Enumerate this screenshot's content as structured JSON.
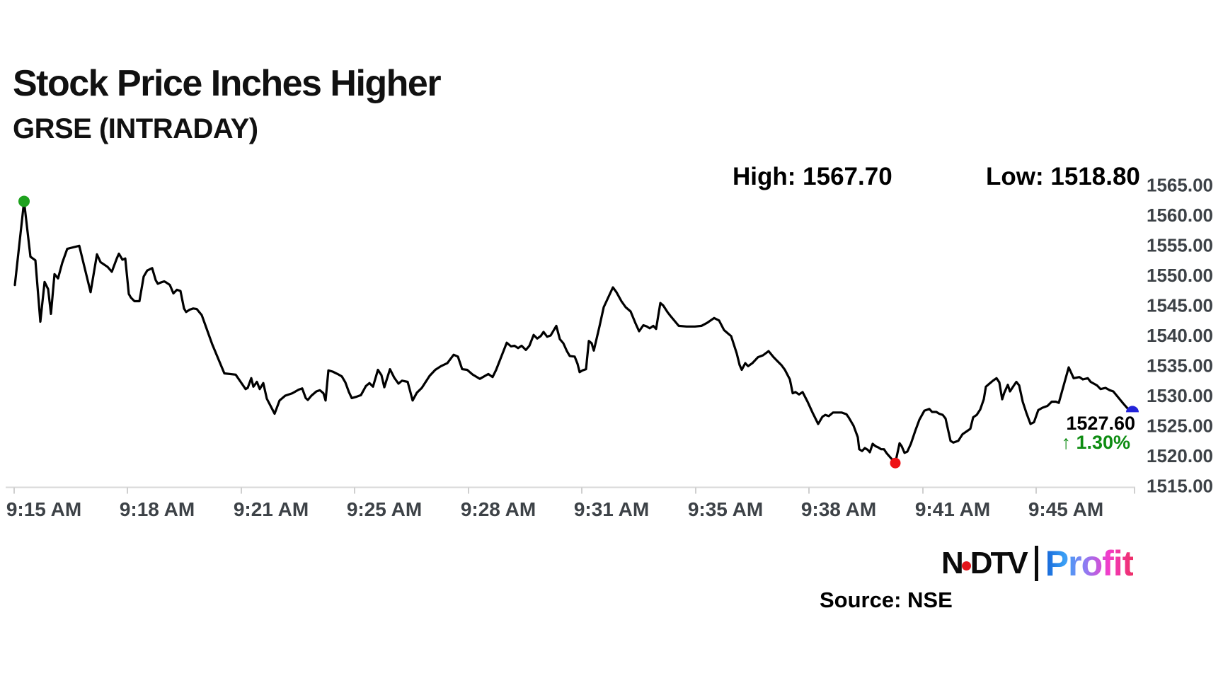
{
  "header": {
    "title": "Stock Price Inches Higher",
    "subtitle": "GRSE (INTRADAY)",
    "high_label": "High: 1567.70",
    "low_label": "Low: 1518.80"
  },
  "annotation": {
    "last_price": "1527.60",
    "change": "↑ 1.30%"
  },
  "footer": {
    "source": "Source: NSE",
    "logo_ndtv_n": "N",
    "logo_ndtv_dtv": "DTV",
    "logo_profit": "Profit"
  },
  "colors": {
    "line": "#000000",
    "axis_label": "#3d4247",
    "axis_line": "#d9d9d9",
    "tick": "#cfcfcf",
    "marker_start_green": "#1ea21e",
    "marker_low_red": "#ee1114",
    "marker_end_blue": "#2323d9",
    "change_green": "#0e8c12",
    "logo_red_dot": "#e3151b"
  },
  "chart_data": {
    "type": "line",
    "title": "Stock Price Inches Higher",
    "subtitle": "GRSE (INTRADAY)",
    "series_name": "GRSE intraday price",
    "session_high": 1567.7,
    "session_low": 1518.8,
    "last_price": 1527.6,
    "change_pct_text": "1.30%",
    "change_direction": "up",
    "legend": false,
    "grid": false,
    "y_axis": {
      "min": 1515,
      "max": 1565,
      "step": 5,
      "side": "right",
      "label_format": "2dp"
    },
    "x_axis": {
      "labels": [
        "9:15 AM",
        "9:18 AM",
        "9:21 AM",
        "9:25 AM",
        "9:28 AM",
        "9:31 AM",
        "9:35 AM",
        "9:38 AM",
        "9:41 AM",
        "9:45 AM"
      ]
    },
    "x_encoding": "first value of each pair is horizontal position (px on 1728-wide canvas, categorical intraday time axis); second value is price (INR)",
    "markers": {
      "start": "green dot at opening spike high",
      "low": "red dot at session low",
      "end": "blue dot at last traded price"
    },
    "points": [
      [
        21,
        1548.4
      ],
      [
        34,
        1562.3
      ],
      [
        43,
        1553.1
      ],
      [
        50,
        1552.5
      ],
      [
        57,
        1542.3
      ],
      [
        63,
        1548.9
      ],
      [
        68,
        1547.7
      ],
      [
        72,
        1543.6
      ],
      [
        77,
        1550.2
      ],
      [
        82,
        1549.5
      ],
      [
        88,
        1552.1
      ],
      [
        95,
        1554.4
      ],
      [
        105,
        1554.7
      ],
      [
        112,
        1554.9
      ],
      [
        128,
        1547.2
      ],
      [
        137,
        1553.5
      ],
      [
        142,
        1552.2
      ],
      [
        147,
        1551.8
      ],
      [
        152,
        1551.4
      ],
      [
        158,
        1550.6
      ],
      [
        165,
        1552.8
      ],
      [
        168,
        1553.6
      ],
      [
        173,
        1552.6
      ],
      [
        177,
        1552.8
      ],
      [
        182,
        1546.9
      ],
      [
        185,
        1546.3
      ],
      [
        190,
        1545.7
      ],
      [
        197,
        1545.7
      ],
      [
        203,
        1549.8
      ],
      [
        208,
        1550.8
      ],
      [
        215,
        1551.2
      ],
      [
        220,
        1549.2
      ],
      [
        223,
        1548.6
      ],
      [
        227,
        1548.8
      ],
      [
        232,
        1549.0
      ],
      [
        235,
        1548.8
      ],
      [
        240,
        1548.4
      ],
      [
        245,
        1547.0
      ],
      [
        250,
        1547.6
      ],
      [
        255,
        1547.4
      ],
      [
        260,
        1544.5
      ],
      [
        263,
        1543.9
      ],
      [
        268,
        1544.3
      ],
      [
        273,
        1544.5
      ],
      [
        278,
        1544.4
      ],
      [
        285,
        1543.4
      ],
      [
        300,
        1538.5
      ],
      [
        317,
        1533.7
      ],
      [
        333,
        1533.5
      ],
      [
        340,
        1532.3
      ],
      [
        347,
        1531.1
      ],
      [
        350,
        1531.3
      ],
      [
        355,
        1532.9
      ],
      [
        358,
        1531.5
      ],
      [
        363,
        1532.3
      ],
      [
        367,
        1531.1
      ],
      [
        372,
        1532.1
      ],
      [
        377,
        1529.5
      ],
      [
        388,
        1527.0
      ],
      [
        395,
        1529.2
      ],
      [
        403,
        1530.0
      ],
      [
        413,
        1530.4
      ],
      [
        422,
        1531.0
      ],
      [
        427,
        1531.2
      ],
      [
        432,
        1529.6
      ],
      [
        435,
        1529.3
      ],
      [
        440,
        1530.0
      ],
      [
        447,
        1530.7
      ],
      [
        452,
        1530.9
      ],
      [
        457,
        1530.4
      ],
      [
        460,
        1529.2
      ],
      [
        464,
        1534.2
      ],
      [
        470,
        1534.0
      ],
      [
        477,
        1533.6
      ],
      [
        483,
        1533.2
      ],
      [
        488,
        1532.2
      ],
      [
        493,
        1530.6
      ],
      [
        497,
        1529.6
      ],
      [
        503,
        1529.8
      ],
      [
        510,
        1530.1
      ],
      [
        517,
        1531.6
      ],
      [
        522,
        1532.1
      ],
      [
        527,
        1531.5
      ],
      [
        534,
        1534.3
      ],
      [
        539,
        1533.4
      ],
      [
        543,
        1531.4
      ],
      [
        551,
        1534.4
      ],
      [
        557,
        1533.0
      ],
      [
        563,
        1532.0
      ],
      [
        568,
        1532.5
      ],
      [
        576,
        1532.3
      ],
      [
        583,
        1529.2
      ],
      [
        589,
        1530.5
      ],
      [
        596,
        1531.3
      ],
      [
        607,
        1533.3
      ],
      [
        615,
        1534.3
      ],
      [
        623,
        1534.9
      ],
      [
        632,
        1535.4
      ],
      [
        641,
        1536.8
      ],
      [
        647,
        1536.5
      ],
      [
        653,
        1534.4
      ],
      [
        660,
        1534.3
      ],
      [
        668,
        1533.5
      ],
      [
        678,
        1532.8
      ],
      [
        690,
        1533.6
      ],
      [
        696,
        1533.1
      ],
      [
        701,
        1534.3
      ],
      [
        716,
        1538.8
      ],
      [
        722,
        1538.2
      ],
      [
        727,
        1538.3
      ],
      [
        732,
        1537.9
      ],
      [
        737,
        1538.3
      ],
      [
        743,
        1537.6
      ],
      [
        748,
        1538.3
      ],
      [
        754,
        1540.1
      ],
      [
        759,
        1539.5
      ],
      [
        764,
        1539.9
      ],
      [
        768,
        1540.6
      ],
      [
        773,
        1539.8
      ],
      [
        778,
        1540.0
      ],
      [
        786,
        1541.6
      ],
      [
        791,
        1539.4
      ],
      [
        796,
        1538.7
      ],
      [
        801,
        1537.4
      ],
      [
        805,
        1536.6
      ],
      [
        812,
        1536.5
      ],
      [
        816,
        1535.3
      ],
      [
        819,
        1533.9
      ],
      [
        823,
        1534.2
      ],
      [
        828,
        1534.4
      ],
      [
        832,
        1539.1
      ],
      [
        836,
        1538.7
      ],
      [
        839,
        1537.5
      ],
      [
        847,
        1541.5
      ],
      [
        853,
        1544.7
      ],
      [
        866,
        1548.0
      ],
      [
        871,
        1547.2
      ],
      [
        878,
        1545.7
      ],
      [
        884,
        1544.7
      ],
      [
        891,
        1544.0
      ],
      [
        898,
        1542.0
      ],
      [
        903,
        1540.7
      ],
      [
        909,
        1541.7
      ],
      [
        914,
        1541.5
      ],
      [
        918,
        1541.2
      ],
      [
        923,
        1541.6
      ],
      [
        927,
        1541.1
      ],
      [
        933,
        1545.4
      ],
      [
        937,
        1545.0
      ],
      [
        943,
        1543.9
      ],
      [
        947,
        1543.3
      ],
      [
        959,
        1541.6
      ],
      [
        970,
        1541.5
      ],
      [
        982,
        1541.5
      ],
      [
        991,
        1541.6
      ],
      [
        999,
        1542.1
      ],
      [
        1009,
        1542.9
      ],
      [
        1016,
        1542.5
      ],
      [
        1023,
        1540.9
      ],
      [
        1029,
        1540.3
      ],
      [
        1033,
        1539.9
      ],
      [
        1041,
        1537.0
      ],
      [
        1045,
        1535.1
      ],
      [
        1048,
        1534.3
      ],
      [
        1053,
        1535.4
      ],
      [
        1057,
        1534.9
      ],
      [
        1063,
        1535.4
      ],
      [
        1071,
        1536.4
      ],
      [
        1078,
        1536.7
      ],
      [
        1086,
        1537.4
      ],
      [
        1093,
        1536.4
      ],
      [
        1098,
        1535.8
      ],
      [
        1104,
        1535.1
      ],
      [
        1109,
        1534.3
      ],
      [
        1116,
        1532.7
      ],
      [
        1120,
        1530.4
      ],
      [
        1124,
        1530.6
      ],
      [
        1129,
        1530.2
      ],
      [
        1134,
        1530.6
      ],
      [
        1141,
        1529.0
      ],
      [
        1148,
        1527.2
      ],
      [
        1156,
        1525.3
      ],
      [
        1162,
        1526.5
      ],
      [
        1166,
        1526.8
      ],
      [
        1171,
        1526.6
      ],
      [
        1177,
        1527.2
      ],
      [
        1189,
        1527.2
      ],
      [
        1196,
        1526.9
      ],
      [
        1199,
        1526.4
      ],
      [
        1206,
        1525.0
      ],
      [
        1212,
        1523.1
      ],
      [
        1214,
        1521.1
      ],
      [
        1218,
        1520.8
      ],
      [
        1222,
        1521.3
      ],
      [
        1226,
        1521.0
      ],
      [
        1229,
        1520.6
      ],
      [
        1233,
        1522.0
      ],
      [
        1237,
        1521.6
      ],
      [
        1241,
        1521.4
      ],
      [
        1245,
        1521.1
      ],
      [
        1249,
        1521.1
      ],
      [
        1253,
        1520.4
      ],
      [
        1259,
        1519.6
      ],
      [
        1265,
        1518.8
      ],
      [
        1271,
        1522.1
      ],
      [
        1274,
        1521.6
      ],
      [
        1278,
        1520.5
      ],
      [
        1282,
        1520.7
      ],
      [
        1287,
        1522.0
      ],
      [
        1293,
        1524.1
      ],
      [
        1299,
        1526.0
      ],
      [
        1306,
        1527.5
      ],
      [
        1313,
        1527.8
      ],
      [
        1317,
        1527.3
      ],
      [
        1323,
        1527.3
      ],
      [
        1327,
        1527.0
      ],
      [
        1332,
        1526.8
      ],
      [
        1336,
        1526.2
      ],
      [
        1343,
        1522.5
      ],
      [
        1347,
        1522.2
      ],
      [
        1354,
        1522.5
      ],
      [
        1360,
        1523.6
      ],
      [
        1365,
        1524.0
      ],
      [
        1371,
        1524.5
      ],
      [
        1375,
        1526.4
      ],
      [
        1380,
        1526.8
      ],
      [
        1385,
        1527.7
      ],
      [
        1390,
        1529.4
      ],
      [
        1393,
        1531.5
      ],
      [
        1398,
        1532.0
      ],
      [
        1403,
        1532.5
      ],
      [
        1408,
        1532.9
      ],
      [
        1412,
        1532.2
      ],
      [
        1416,
        1529.4
      ],
      [
        1419,
        1530.5
      ],
      [
        1424,
        1531.8
      ],
      [
        1427,
        1530.7
      ],
      [
        1432,
        1531.6
      ],
      [
        1436,
        1532.3
      ],
      [
        1440,
        1531.7
      ],
      [
        1445,
        1529.0
      ],
      [
        1450,
        1527.2
      ],
      [
        1456,
        1525.3
      ],
      [
        1461,
        1525.6
      ],
      [
        1467,
        1527.6
      ],
      [
        1473,
        1528.0
      ],
      [
        1480,
        1528.3
      ],
      [
        1486,
        1529.0
      ],
      [
        1492,
        1529.0
      ],
      [
        1496,
        1528.8
      ],
      [
        1510,
        1534.7
      ],
      [
        1517,
        1532.9
      ],
      [
        1525,
        1533.1
      ],
      [
        1530,
        1532.7
      ],
      [
        1537,
        1532.9
      ],
      [
        1541,
        1532.3
      ],
      [
        1550,
        1531.7
      ],
      [
        1555,
        1531.1
      ],
      [
        1562,
        1531.3
      ],
      [
        1568,
        1530.9
      ],
      [
        1573,
        1530.7
      ],
      [
        1580,
        1529.7
      ],
      [
        1587,
        1528.7
      ],
      [
        1593,
        1527.9
      ],
      [
        1600,
        1527.6
      ]
    ]
  }
}
